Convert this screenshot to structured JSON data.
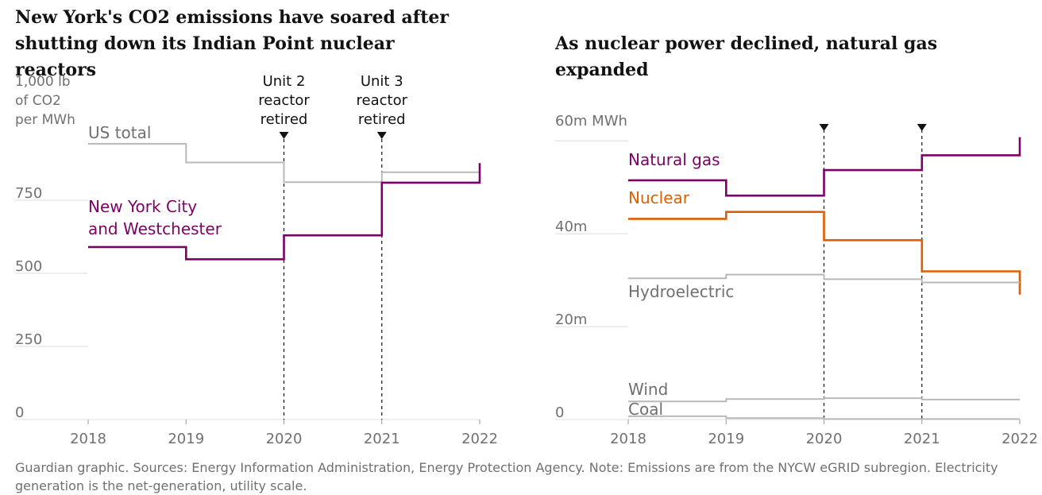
{
  "titles": {
    "left": "New York's CO2 emissions have soared after shutting down its Indian Point nuclear reactors",
    "right": "As nuclear power declined, natural gas expanded"
  },
  "footer": "Guardian graphic. Sources: Energy Information Administration, Energy Protection Agency. Note: Emissions are from the NYCW eGRID subregion. Electricity generation is the net-generation, utility scale.",
  "colors": {
    "purple": "#7d0068",
    "orange": "#e05e00",
    "gray": "#b9b9b9",
    "gridline": "#dcdcdc",
    "text_gray": "#707070",
    "dark": "#121212"
  },
  "chart_data": [
    {
      "type": "line",
      "step": true,
      "title": "New York's CO2 emissions have soared after shutting down its Indian Point nuclear reactors",
      "ylabel": "1,000 lb of CO2 per MWh",
      "y_unit_lines": [
        "1,000 lb",
        "of CO2",
        "per MWh"
      ],
      "ylim": [
        0,
        1000
      ],
      "yticks": [
        0,
        250,
        500,
        750
      ],
      "ytick_labels": [
        "0",
        "250",
        "500",
        "750"
      ],
      "xlim": [
        2018,
        2022
      ],
      "xticks": [
        2018,
        2019,
        2020,
        2021,
        2022
      ],
      "xtick_labels": [
        "2018",
        "2019",
        "2020",
        "2021",
        "2022"
      ],
      "grid": true,
      "annotations": [
        {
          "x": 2020,
          "lines": [
            "Unit 2",
            "reactor",
            "retired"
          ]
        },
        {
          "x": 2021,
          "lines": [
            "Unit 3",
            "reactor",
            "retired"
          ]
        }
      ],
      "series": [
        {
          "name": "US total",
          "label_lines": [
            "US total"
          ],
          "color": "gray",
          "steps": [
            [
              2018,
              2019,
              943
            ],
            [
              2019,
              2020,
              879
            ],
            [
              2020,
              2021,
              812
            ],
            [
              2021,
              2022,
              846
            ]
          ]
        },
        {
          "name": "New York City and Westchester",
          "label_lines": [
            "New York City",
            "and Westchester"
          ],
          "color": "purple",
          "steps": [
            [
              2018,
              2019,
              590
            ],
            [
              2019,
              2020,
              548
            ],
            [
              2020,
              2021,
              630
            ],
            [
              2021,
              2022,
              810
            ]
          ],
          "end_value": 877
        }
      ]
    },
    {
      "type": "line",
      "step": true,
      "title": "As nuclear power declined, natural gas expanded",
      "ylabel": "60m MWh",
      "ylim": [
        0,
        65
      ],
      "yticks": [
        0,
        20,
        40,
        60
      ],
      "ytick_labels": [
        "0",
        "20m",
        "40m",
        "60m MWh"
      ],
      "xlim": [
        2018,
        2022
      ],
      "xticks": [
        2018,
        2019,
        2020,
        2021,
        2022
      ],
      "xtick_labels": [
        "2018",
        "2019",
        "2020",
        "2021",
        "2022"
      ],
      "grid": true,
      "markers_x": [
        2020,
        2021
      ],
      "series": [
        {
          "name": "Natural gas",
          "color": "purple",
          "steps": [
            [
              2018,
              2019,
              51.5
            ],
            [
              2019,
              2020,
              48.2
            ],
            [
              2020,
              2021,
              53.7
            ],
            [
              2021,
              2022,
              56.9
            ]
          ],
          "end_value": 60.8
        },
        {
          "name": "Nuclear",
          "color": "orange",
          "steps": [
            [
              2018,
              2019,
              43.2
            ],
            [
              2019,
              2020,
              44.7
            ],
            [
              2020,
              2021,
              38.6
            ],
            [
              2021,
              2022,
              31.9
            ]
          ],
          "end_value": 26.9
        },
        {
          "name": "Hydroelectric",
          "color": "gray",
          "steps": [
            [
              2018,
              2019,
              30.4
            ],
            [
              2019,
              2020,
              31.2
            ],
            [
              2020,
              2021,
              30.2
            ],
            [
              2021,
              2022,
              29.5
            ]
          ]
        },
        {
          "name": "Wind",
          "color": "gray",
          "steps": [
            [
              2018,
              2019,
              3.9
            ],
            [
              2019,
              2020,
              4.4
            ],
            [
              2020,
              2021,
              4.6
            ],
            [
              2021,
              2022,
              4.3
            ]
          ]
        },
        {
          "name": "Coal",
          "color": "gray",
          "steps": [
            [
              2018,
              2019,
              0.7
            ],
            [
              2019,
              2020,
              0.3
            ],
            [
              2020,
              2021,
              0.1
            ],
            [
              2021,
              2022,
              0.1
            ]
          ]
        }
      ]
    }
  ]
}
